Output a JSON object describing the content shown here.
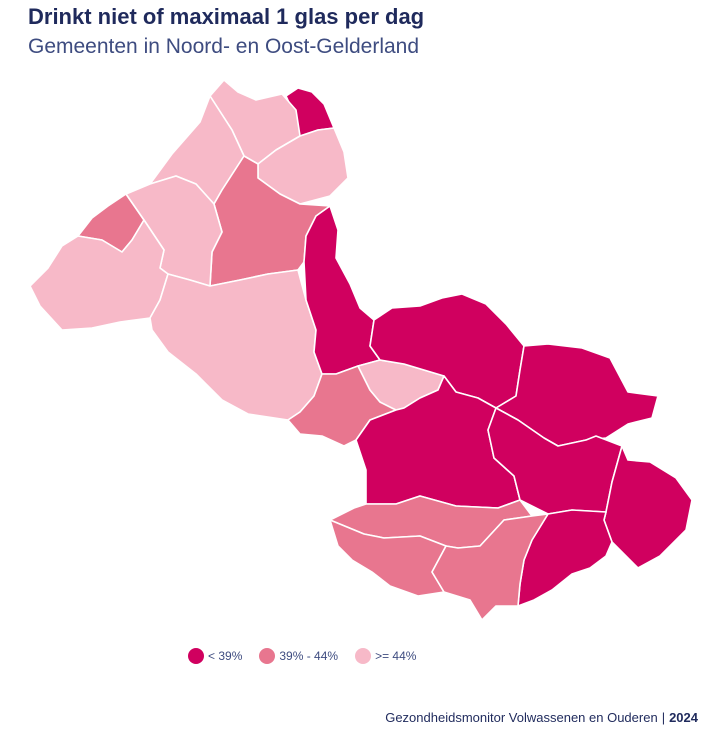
{
  "header": {
    "title": "Drinkt niet of maximaal 1 glas per dag",
    "subtitle": "Gemeenten in Noord- en Oost-Gelderland"
  },
  "colors": {
    "low": "#d0005f",
    "mid": "#e8768f",
    "high": "#f7b9c8",
    "title": "#1f2a5c",
    "text": "#3e4c80"
  },
  "legend": [
    {
      "label": "< 39%",
      "category": "low"
    },
    {
      "label": "39% - 44%",
      "category": "mid"
    },
    {
      "label": ">= 44%",
      "category": "high"
    }
  ],
  "municipalities": [
    {
      "region": "north-top",
      "category": "low"
    },
    {
      "region": "north-west-small",
      "category": "mid"
    },
    {
      "region": "north-center",
      "category": "mid"
    },
    {
      "region": "north-light-a",
      "category": "high"
    },
    {
      "region": "north-light-b",
      "category": "high"
    },
    {
      "region": "north-light-c",
      "category": "high"
    },
    {
      "region": "west-light-a",
      "category": "high"
    },
    {
      "region": "west-light-b",
      "category": "high"
    },
    {
      "region": "center-light-large",
      "category": "high"
    },
    {
      "region": "center-mid",
      "category": "mid"
    },
    {
      "region": "center-small-light",
      "category": "high"
    },
    {
      "region": "east-strip",
      "category": "low"
    },
    {
      "region": "east-north",
      "category": "low"
    },
    {
      "region": "east-center",
      "category": "low"
    },
    {
      "region": "east-mid",
      "category": "low"
    },
    {
      "region": "east-large",
      "category": "low"
    },
    {
      "region": "east-far",
      "category": "low"
    },
    {
      "region": "east-right",
      "category": "low"
    },
    {
      "region": "south-east-dark",
      "category": "low"
    },
    {
      "region": "south-mid-a",
      "category": "mid"
    },
    {
      "region": "south-mid-b",
      "category": "mid"
    },
    {
      "region": "south-mid-c",
      "category": "mid"
    }
  ],
  "footer": {
    "source": "Gezondheidsmonitor Volwassenen en Ouderen",
    "separator": "|",
    "year": "2024"
  }
}
